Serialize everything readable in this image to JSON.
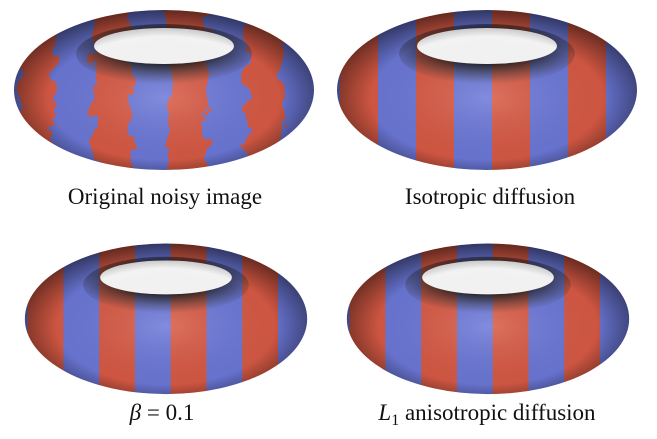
{
  "panels": [
    {
      "caption": "Original noisy image"
    },
    {
      "caption": "Isotropic diffusion"
    },
    {
      "caption": {
        "symbol": "β",
        "text": "= 0.1"
      }
    },
    {
      "caption": {
        "symbol": "L",
        "subscript": "1",
        "text": "anisotropic diffusion"
      }
    }
  ]
}
